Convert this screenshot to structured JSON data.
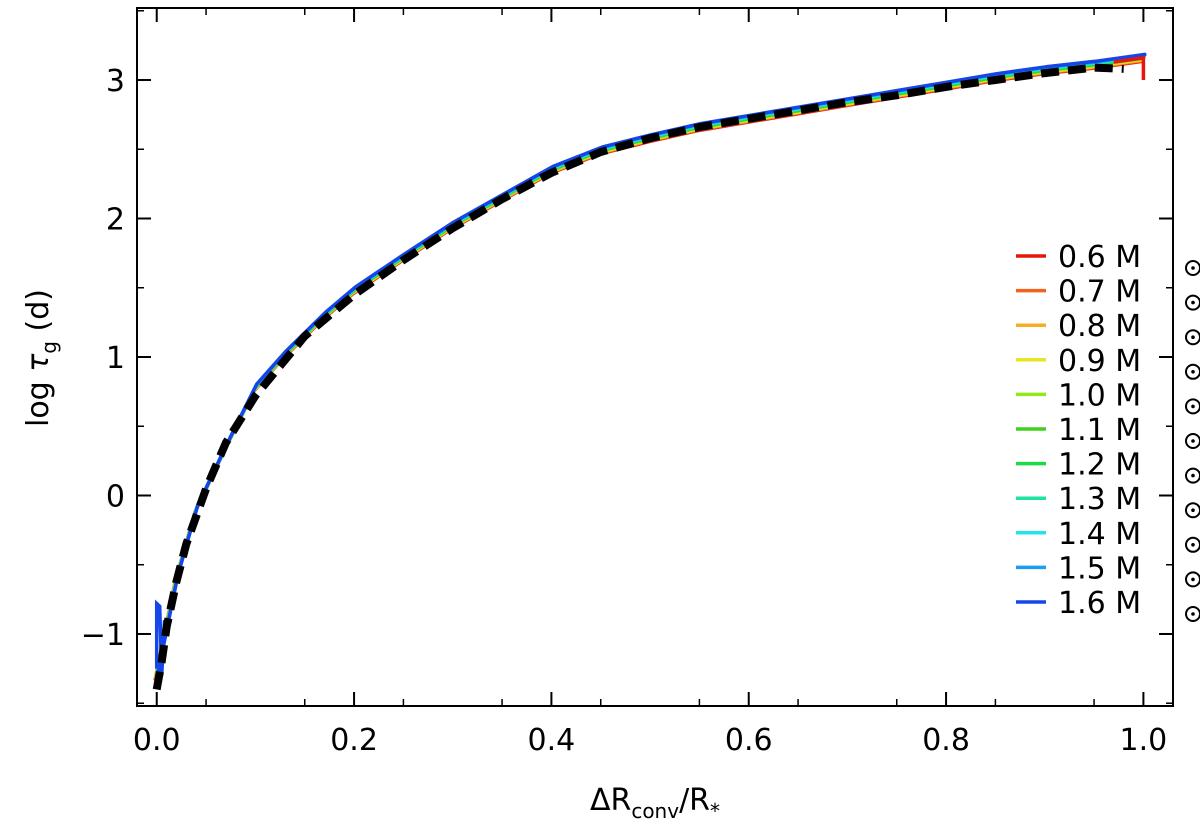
{
  "chart_data": {
    "type": "line",
    "xlabel": {
      "base": "ΔR",
      "sub": "conv",
      "rest": "/R",
      "sub2": "*"
    },
    "ylabel": {
      "prefix": "log ",
      "sym": "τ",
      "sub": "g",
      "suffix": " (d)"
    },
    "xlim": [
      -0.02,
      1.03
    ],
    "ylim": [
      -1.52,
      3.52
    ],
    "xticks": [
      0.0,
      0.2,
      0.4,
      0.6,
      0.8,
      1.0
    ],
    "xtick_labels": [
      "0.0",
      "0.2",
      "0.4",
      "0.6",
      "0.8",
      "1.0"
    ],
    "yticks": [
      -1,
      0,
      1,
      2,
      3
    ],
    "ytick_labels": [
      "−1",
      "0",
      "1",
      "2",
      "3"
    ],
    "grid": false,
    "legend_position": "right",
    "legend_unit": "M",
    "series": [
      {
        "name": "0.6",
        "color": "#e8150f"
      },
      {
        "name": "0.7",
        "color": "#f2621e"
      },
      {
        "name": "0.8",
        "color": "#f5b021"
      },
      {
        "name": "0.9",
        "color": "#e6e622"
      },
      {
        "name": "1.0",
        "color": "#93e81a"
      },
      {
        "name": "1.1",
        "color": "#3fd11c"
      },
      {
        "name": "1.2",
        "color": "#1bdc44"
      },
      {
        "name": "1.3",
        "color": "#20e3a3"
      },
      {
        "name": "1.4",
        "color": "#22e4ef"
      },
      {
        "name": "1.5",
        "color": "#1b9ef0"
      },
      {
        "name": "1.6",
        "color": "#1446e8"
      }
    ],
    "common_curve": {
      "x": [
        0.0,
        0.02,
        0.04,
        0.07,
        0.1,
        0.13,
        0.17,
        0.2,
        0.25,
        0.3,
        0.35,
        0.4,
        0.45,
        0.5,
        0.55,
        0.6,
        0.65,
        0.7,
        0.75,
        0.8,
        0.85,
        0.9,
        0.95,
        1.0
      ],
      "y": [
        -1.3,
        -0.6,
        -0.1,
        0.35,
        0.78,
        1.02,
        1.3,
        1.48,
        1.72,
        1.95,
        2.15,
        2.35,
        2.49,
        2.58,
        2.66,
        2.72,
        2.78,
        2.84,
        2.9,
        2.96,
        3.02,
        3.07,
        3.11,
        3.16
      ]
    },
    "fit_curve": {
      "name": "dashed",
      "color": "#000000",
      "x": [
        0.0,
        0.005,
        0.01,
        0.02,
        0.03,
        0.05,
        0.07,
        0.1,
        0.15,
        0.2,
        0.25,
        0.3,
        0.35,
        0.4,
        0.45,
        0.5,
        0.55,
        0.6,
        0.65,
        0.7,
        0.75,
        0.8,
        0.85,
        0.9,
        0.95,
        0.98
      ],
      "y": [
        -1.4,
        -1.2,
        -0.95,
        -0.62,
        -0.35,
        0.05,
        0.38,
        0.72,
        1.15,
        1.45,
        1.7,
        1.93,
        2.14,
        2.33,
        2.48,
        2.58,
        2.66,
        2.72,
        2.78,
        2.84,
        2.89,
        2.95,
        3.0,
        3.05,
        3.09,
        3.08
      ]
    },
    "red_end_tail": {
      "x": [
        0.97,
        1.0,
        1.0
      ],
      "y": [
        3.13,
        3.16,
        3.0
      ]
    },
    "blue_start_spike": {
      "x": [
        0.0,
        0.0,
        0.003,
        0.005,
        0.008
      ],
      "y": [
        -1.25,
        -0.78,
        -0.8,
        -1.3,
        -0.9
      ]
    }
  }
}
